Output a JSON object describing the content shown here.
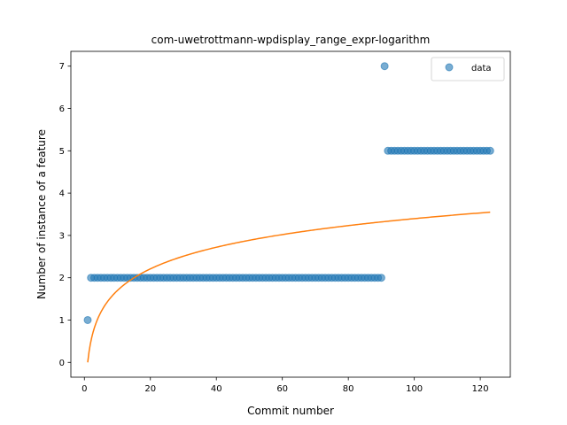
{
  "chart_data": {
    "type": "scatter",
    "title": "com-uwetrottmann-wpdisplay_range_expr-logarithm",
    "xlabel": "Commit number",
    "ylabel": "Number of instance of a feature",
    "xlim": [
      -4.1,
      129.1
    ],
    "ylim": [
      -0.35,
      7.35
    ],
    "xticks": [
      0,
      20,
      40,
      60,
      80,
      100,
      120
    ],
    "yticks": [
      0,
      1,
      2,
      3,
      4,
      5,
      6,
      7
    ],
    "legend": {
      "position": "top-right",
      "entries": [
        "data"
      ]
    },
    "colors": {
      "data": "#1f77b4",
      "fit": "#ff7f0e"
    },
    "series": [
      {
        "name": "data",
        "kind": "scatter",
        "points": [
          [
            1,
            1
          ],
          [
            2,
            2
          ],
          [
            3,
            2
          ],
          [
            4,
            2
          ],
          [
            5,
            2
          ],
          [
            6,
            2
          ],
          [
            7,
            2
          ],
          [
            8,
            2
          ],
          [
            9,
            2
          ],
          [
            10,
            2
          ],
          [
            11,
            2
          ],
          [
            12,
            2
          ],
          [
            13,
            2
          ],
          [
            14,
            2
          ],
          [
            15,
            2
          ],
          [
            16,
            2
          ],
          [
            17,
            2
          ],
          [
            18,
            2
          ],
          [
            19,
            2
          ],
          [
            20,
            2
          ],
          [
            21,
            2
          ],
          [
            22,
            2
          ],
          [
            23,
            2
          ],
          [
            24,
            2
          ],
          [
            25,
            2
          ],
          [
            26,
            2
          ],
          [
            27,
            2
          ],
          [
            28,
            2
          ],
          [
            29,
            2
          ],
          [
            30,
            2
          ],
          [
            31,
            2
          ],
          [
            32,
            2
          ],
          [
            33,
            2
          ],
          [
            34,
            2
          ],
          [
            35,
            2
          ],
          [
            36,
            2
          ],
          [
            37,
            2
          ],
          [
            38,
            2
          ],
          [
            39,
            2
          ],
          [
            40,
            2
          ],
          [
            41,
            2
          ],
          [
            42,
            2
          ],
          [
            43,
            2
          ],
          [
            44,
            2
          ],
          [
            45,
            2
          ],
          [
            46,
            2
          ],
          [
            47,
            2
          ],
          [
            48,
            2
          ],
          [
            49,
            2
          ],
          [
            50,
            2
          ],
          [
            51,
            2
          ],
          [
            52,
            2
          ],
          [
            53,
            2
          ],
          [
            54,
            2
          ],
          [
            55,
            2
          ],
          [
            56,
            2
          ],
          [
            57,
            2
          ],
          [
            58,
            2
          ],
          [
            59,
            2
          ],
          [
            60,
            2
          ],
          [
            61,
            2
          ],
          [
            62,
            2
          ],
          [
            63,
            2
          ],
          [
            64,
            2
          ],
          [
            65,
            2
          ],
          [
            66,
            2
          ],
          [
            67,
            2
          ],
          [
            68,
            2
          ],
          [
            69,
            2
          ],
          [
            70,
            2
          ],
          [
            71,
            2
          ],
          [
            72,
            2
          ],
          [
            73,
            2
          ],
          [
            74,
            2
          ],
          [
            75,
            2
          ],
          [
            76,
            2
          ],
          [
            77,
            2
          ],
          [
            78,
            2
          ],
          [
            79,
            2
          ],
          [
            80,
            2
          ],
          [
            81,
            2
          ],
          [
            82,
            2
          ],
          [
            83,
            2
          ],
          [
            84,
            2
          ],
          [
            85,
            2
          ],
          [
            86,
            2
          ],
          [
            87,
            2
          ],
          [
            88,
            2
          ],
          [
            89,
            2
          ],
          [
            90,
            2
          ],
          [
            91,
            7
          ],
          [
            92,
            5
          ],
          [
            93,
            5
          ],
          [
            94,
            5
          ],
          [
            95,
            5
          ],
          [
            96,
            5
          ],
          [
            97,
            5
          ],
          [
            98,
            5
          ],
          [
            99,
            5
          ],
          [
            100,
            5
          ],
          [
            101,
            5
          ],
          [
            102,
            5
          ],
          [
            103,
            5
          ],
          [
            104,
            5
          ],
          [
            105,
            5
          ],
          [
            106,
            5
          ],
          [
            107,
            5
          ],
          [
            108,
            5
          ],
          [
            109,
            5
          ],
          [
            110,
            5
          ],
          [
            111,
            5
          ],
          [
            112,
            5
          ],
          [
            113,
            5
          ],
          [
            114,
            5
          ],
          [
            115,
            5
          ],
          [
            116,
            5
          ],
          [
            117,
            5
          ],
          [
            118,
            5
          ],
          [
            119,
            5
          ],
          [
            120,
            5
          ],
          [
            121,
            5
          ],
          [
            122,
            5
          ],
          [
            123,
            5
          ]
        ]
      },
      {
        "kind": "line",
        "function": "logarithmic",
        "coefficients": {
          "a": 0.0,
          "b": 0.7376
        },
        "x_range": [
          1,
          123
        ]
      }
    ]
  }
}
